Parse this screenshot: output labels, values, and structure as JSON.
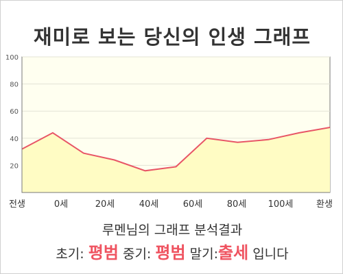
{
  "title": "재미로 보는 당신의 인생 그래프",
  "chart_data": {
    "type": "area",
    "title": "재미로 보는 당신의 인생 그래프",
    "xlabel": "",
    "ylabel": "",
    "ylim": [
      0,
      100
    ],
    "yticks": [
      20,
      40,
      60,
      80,
      100
    ],
    "grid": true,
    "legend": "none",
    "x_labels": [
      "전생",
      "0세",
      "20세",
      "40세",
      "60세",
      "80세",
      "100세",
      "환생"
    ],
    "series": [
      {
        "values": [
          32,
          44,
          29,
          24,
          16,
          19,
          40,
          37,
          39,
          44,
          48
        ],
        "color": "#e85566",
        "fill": "#fffcc4"
      }
    ]
  },
  "colors": {
    "accent": "#ef5360",
    "plot_bg": "#fffff0",
    "area": "#fffcc4"
  },
  "summary": {
    "line1": "루멘님의 그래프 분석결과",
    "early_label": "초기:",
    "early_value": "평범",
    "mid_label": "중기:",
    "mid_value": "평범",
    "late_label": "말기:",
    "late_value": "출세",
    "suffix": "입니다"
  }
}
